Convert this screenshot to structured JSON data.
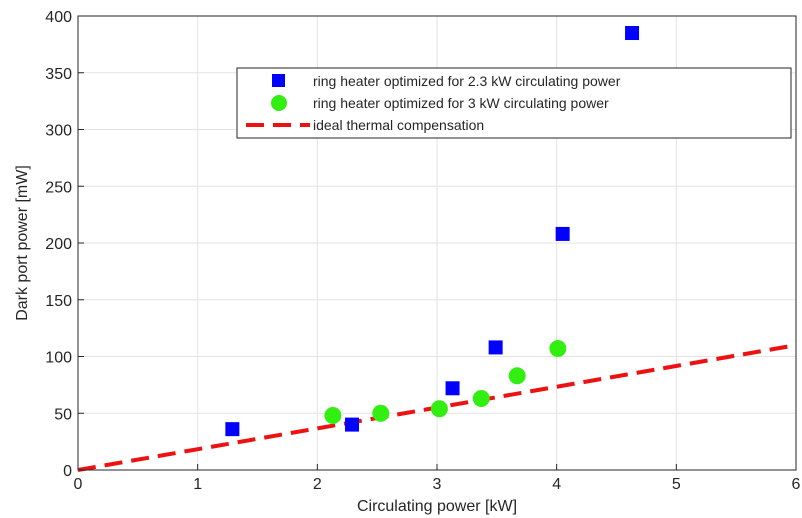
{
  "chart_data": {
    "type": "scatter",
    "title": "",
    "xlabel": "Circulating power [kW]",
    "ylabel": "Dark port power [mW]",
    "xlim": [
      0,
      6
    ],
    "ylim": [
      0,
      400
    ],
    "xticks": [
      0,
      1,
      2,
      3,
      4,
      5,
      6
    ],
    "yticks": [
      0,
      50,
      100,
      150,
      200,
      250,
      300,
      350,
      400
    ],
    "grid": true,
    "legend_position": "top-right",
    "series": [
      {
        "name": "ring heater optimized for 2.3 kW circulating power",
        "marker": "square",
        "color": "#0000ff",
        "x": [
          1.29,
          2.29,
          3.13,
          3.49,
          4.05,
          4.63
        ],
        "y": [
          36,
          40,
          72,
          108,
          208,
          385
        ]
      },
      {
        "name": "ring heater optimized for 3 kW circulating power",
        "marker": "circle",
        "color": "#33ee11",
        "x": [
          2.13,
          2.53,
          3.02,
          3.37,
          3.67,
          4.01
        ],
        "y": [
          48,
          50,
          54,
          63,
          83,
          107
        ]
      },
      {
        "name": "ideal thermal compensation",
        "marker": "dashed-line",
        "color": "#ee1111",
        "x": [
          0,
          6
        ],
        "y": [
          0,
          110
        ]
      }
    ]
  }
}
